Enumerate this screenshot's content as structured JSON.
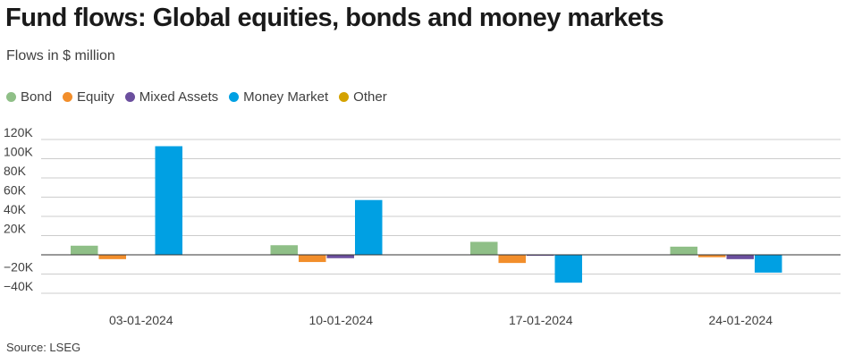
{
  "title": "Fund flows: Global equities, bonds and money markets",
  "subtitle": "Flows in $ million",
  "source": "Source: LSEG",
  "chart_data": {
    "type": "bar",
    "categories": [
      "03-01-2024",
      "10-01-2024",
      "17-01-2024",
      "24-01-2024"
    ],
    "series": [
      {
        "name": "Bond",
        "color": "#8fbf87",
        "values": [
          9500,
          10000,
          13500,
          8500
        ]
      },
      {
        "name": "Equity",
        "color": "#f28e2b",
        "values": [
          -4500,
          -7500,
          -8500,
          -2500
        ]
      },
      {
        "name": "Mixed Assets",
        "color": "#6b4f9e",
        "values": [
          0,
          -3500,
          -1000,
          -4500
        ]
      },
      {
        "name": "Money Market",
        "color": "#00a0e3",
        "values": [
          113000,
          57000,
          -29000,
          -18500
        ]
      },
      {
        "name": "Other",
        "color": "#d4a200",
        "values": [
          0,
          0,
          0,
          0
        ]
      }
    ],
    "y_ticks": [
      "−40K",
      "−20K",
      "",
      "20K",
      "40K",
      "60K",
      "80K",
      "100K",
      "120K"
    ],
    "y_tick_values": [
      -40000,
      -20000,
      0,
      20000,
      40000,
      60000,
      80000,
      100000,
      120000
    ],
    "ylim": [
      -40000,
      120000
    ],
    "grid": true,
    "legend_position": "top-left"
  }
}
